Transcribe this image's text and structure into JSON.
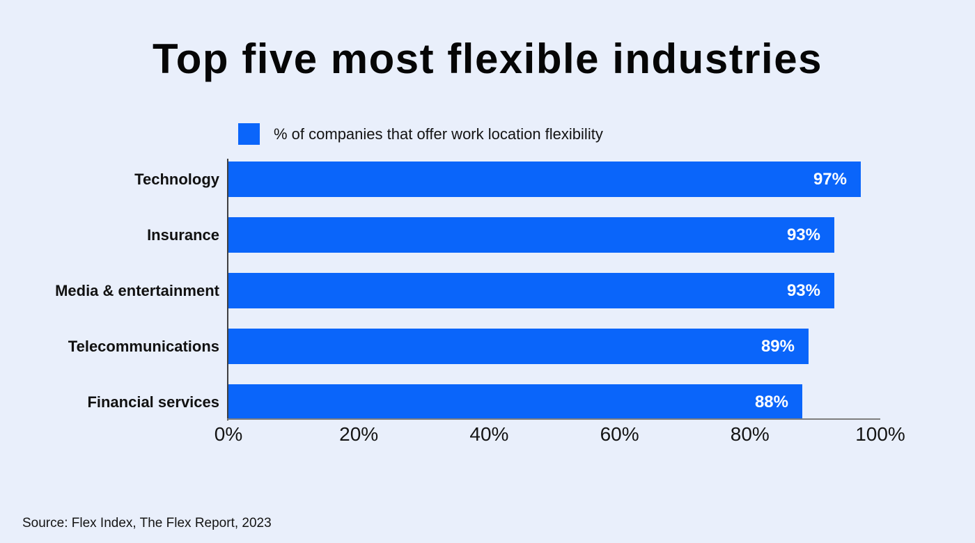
{
  "chart_data": {
    "type": "bar",
    "orientation": "horizontal",
    "title": "Top five most flexible industries",
    "legend": "% of companies that offer work location flexibility",
    "categories": [
      "Technology",
      "Insurance",
      "Media & entertainment",
      "Telecommunications",
      "Financial services"
    ],
    "values": [
      97,
      93,
      93,
      89,
      88
    ],
    "value_labels": [
      "97%",
      "93%",
      "93%",
      "89%",
      "88%"
    ],
    "x_ticks": [
      "0%",
      "20%",
      "40%",
      "60%",
      "80%",
      "100%"
    ],
    "xlim": [
      0,
      100
    ],
    "grid": false,
    "legend_position": "top-left",
    "source": "Source: Flex Index, The Flex Report, 2023",
    "colors": {
      "bar": "#0a65fa",
      "background": "#e9effb",
      "value_label": "#ffffff",
      "text": "#111111",
      "y_axis": "#3f3f3f",
      "x_axis": "#7e7e7e"
    }
  }
}
